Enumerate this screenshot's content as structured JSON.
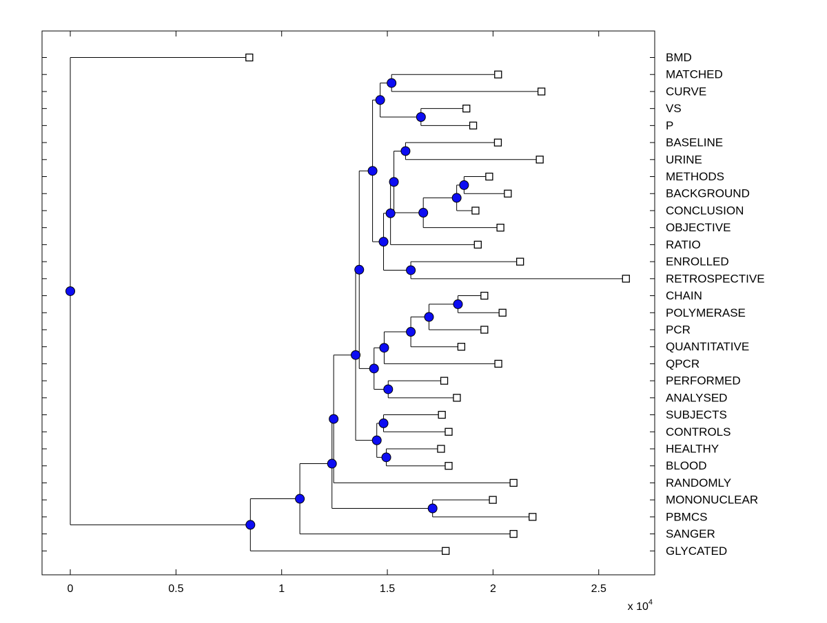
{
  "figure": {
    "background": "#ffffff",
    "kind": "dendrogram-plot"
  },
  "chart_data": {
    "type": "dendrogram",
    "orientation": "horizontal-leaves-right",
    "title": "",
    "xlabel": "",
    "ylabel": "",
    "x_axis": {
      "tick_values": [
        0,
        5000,
        10000,
        15000,
        20000,
        25000
      ],
      "tick_labels": [
        "0",
        "0.5",
        "1",
        "1.5",
        "2",
        "2.5"
      ],
      "scale_label_prefix": "x 10",
      "scale_label_exponent": "4",
      "xlim": [
        -1340,
        27650
      ]
    },
    "grid": "off",
    "legend": "none",
    "leaf_labels": [
      "BMD",
      "MATCHED",
      "CURVE",
      "VS",
      "P",
      "BASELINE",
      "URINE",
      "METHODS",
      "BACKGROUND",
      "CONCLUSION",
      "OBJECTIVE",
      "RATIO",
      "ENROLLED",
      "RETROSPECTIVE",
      "CHAIN",
      "POLYMERASE",
      "PCR",
      "QUANTITATIVE",
      "QPCR",
      "PERFORMED",
      "ANALYSED",
      "SUBJECTS",
      "CONTROLS",
      "HEALTHY",
      "BLOOD",
      "RANDOMLY",
      "MONONUCLEAR",
      "PBMCS",
      "SANGER",
      "GLYCATED"
    ],
    "colors": {
      "line": "#000000",
      "node_marker_fill": "#0d0df2",
      "node_marker_edge": "#000000",
      "leaf_marker_fill": "#ffffff",
      "leaf_marker_edge": "#000000",
      "axis_box": "#000000",
      "text": "#000000",
      "background": "#ffffff"
    },
    "tree": {
      "x": 0,
      "children": [
        {
          "name": "BMD",
          "x": 8470
        },
        {
          "x": 8520,
          "children": [
            {
              "x": 10860,
              "children": [
                {
                  "x": 12380,
                  "children": [
                    {
                      "x": 12460,
                      "children": [
                        {
                          "x": 13500,
                          "children": [
                            {
                              "x": 13670,
                              "children": [
                                {
                                  "x": 14300,
                                  "children": [
                                    {
                                      "x": 14660,
                                      "children": [
                                        {
                                          "x": 15200,
                                          "children": [
                                            {
                                              "name": "MATCHED",
                                              "x": 20240
                                            },
                                            {
                                              "name": "CURVE",
                                              "x": 22290
                                            }
                                          ]
                                        },
                                        {
                                          "x": 16590,
                                          "children": [
                                            {
                                              "name": "VS",
                                              "x": 18740
                                            },
                                            {
                                              "name": "P",
                                              "x": 19060
                                            }
                                          ]
                                        }
                                      ]
                                    },
                                    {
                                      "x": 14820,
                                      "children": [
                                        {
                                          "x": 15150,
                                          "children": [
                                            {
                                              "x": 15310,
                                              "children": [
                                                {
                                                  "x": 15860,
                                                  "children": [
                                                    {
                                                      "name": "BASELINE",
                                                      "x": 20230
                                                    },
                                                    {
                                                      "name": "URINE",
                                                      "x": 22210
                                                    }
                                                  ]
                                                },
                                                {
                                                  "x": 16700,
                                                  "children": [
                                                    {
                                                      "x": 18280,
                                                      "children": [
                                                        {
                                                          "x": 18630,
                                                          "children": [
                                                            {
                                                              "name": "METHODS",
                                                              "x": 19820
                                                            },
                                                            {
                                                              "name": "BACKGROUND",
                                                              "x": 20700
                                                            }
                                                          ]
                                                        },
                                                        {
                                                          "name": "CONCLUSION",
                                                          "x": 19170
                                                        }
                                                      ]
                                                    },
                                                    {
                                                      "name": "OBJECTIVE",
                                                      "x": 20350
                                                    }
                                                  ]
                                                }
                                              ]
                                            },
                                            {
                                              "name": "RATIO",
                                              "x": 19280
                                            }
                                          ]
                                        },
                                        {
                                          "x": 16110,
                                          "children": [
                                            {
                                              "name": "ENROLLED",
                                              "x": 21280
                                            },
                                            {
                                              "name": "RETROSPECTIVE",
                                              "x": 26290
                                            }
                                          ]
                                        }
                                      ]
                                    }
                                  ]
                                },
                                {
                                  "x": 14370,
                                  "children": [
                                    {
                                      "x": 14850,
                                      "children": [
                                        {
                                          "x": 16110,
                                          "children": [
                                            {
                                              "x": 16970,
                                              "children": [
                                                {
                                                  "x": 18340,
                                                  "children": [
                                                    {
                                                      "name": "CHAIN",
                                                      "x": 19590
                                                    },
                                                    {
                                                      "name": "POLYMERASE",
                                                      "x": 20450
                                                    }
                                                  ]
                                                },
                                                {
                                                  "name": "PCR",
                                                  "x": 19590
                                                }
                                              ]
                                            },
                                            {
                                              "name": "QUANTITATIVE",
                                              "x": 18500
                                            }
                                          ]
                                        },
                                        {
                                          "name": "QPCR",
                                          "x": 20250
                                        }
                                      ]
                                    },
                                    {
                                      "x": 15040,
                                      "children": [
                                        {
                                          "name": "PERFORMED",
                                          "x": 17690
                                        },
                                        {
                                          "name": "ANALYSED",
                                          "x": 18290
                                        }
                                      ]
                                    }
                                  ]
                                }
                              ]
                            },
                            {
                              "x": 14500,
                              "children": [
                                {
                                  "x": 14820,
                                  "children": [
                                    {
                                      "name": "SUBJECTS",
                                      "x": 17580
                                    },
                                    {
                                      "name": "CONTROLS",
                                      "x": 17900
                                    }
                                  ]
                                },
                                {
                                  "x": 14950,
                                  "children": [
                                    {
                                      "name": "HEALTHY",
                                      "x": 17540
                                    },
                                    {
                                      "name": "BLOOD",
                                      "x": 17900
                                    }
                                  ]
                                }
                              ]
                            }
                          ]
                        },
                        {
                          "name": "RANDOMLY",
                          "x": 20970
                        }
                      ]
                    },
                    {
                      "x": 17140,
                      "children": [
                        {
                          "name": "MONONUCLEAR",
                          "x": 19990
                        },
                        {
                          "name": "PBMCS",
                          "x": 21870
                        }
                      ]
                    }
                  ]
                },
                {
                  "name": "SANGER",
                  "x": 20970
                }
              ]
            },
            {
              "name": "GLYCATED",
              "x": 17760
            }
          ]
        }
      ]
    }
  }
}
